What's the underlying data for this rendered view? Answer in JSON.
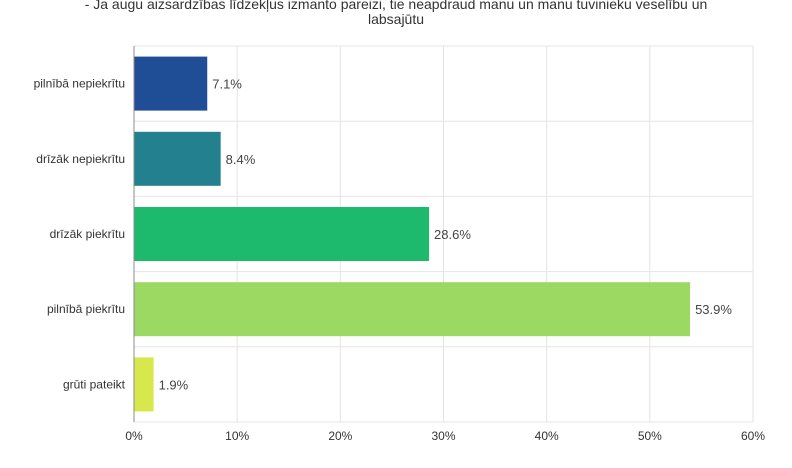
{
  "chart_data": {
    "type": "bar",
    "orientation": "horizontal",
    "title": "- Ja augu aizsardzības līdzekļus izmanto pareizi, tie neapdraud manu un manu tuvinieku veselību un labsajūtu",
    "title_lines": [
      "- Ja augu aizsardzības līdzekļus izmanto pareizi, tie neapdraud manu un manu tuvinieku veselību un",
      "labsajūtu"
    ],
    "categories": [
      "pilnībā nepiekrītu",
      "drīzāk nepiekrītu",
      "drīzāk piekrītu",
      "pilnībā piekrītu",
      "grūti pateikt"
    ],
    "values": [
      7.1,
      8.4,
      28.6,
      53.9,
      1.9
    ],
    "value_labels": [
      "7.1%",
      "8.4%",
      "28.6%",
      "53.9%",
      "1.9%"
    ],
    "colors": [
      "#1f4e96",
      "#23808e",
      "#1dba6e",
      "#9bd962",
      "#d7e84c"
    ],
    "xlim": [
      0,
      60
    ],
    "xticks": [
      0,
      10,
      20,
      30,
      40,
      50,
      60
    ],
    "xtick_labels": [
      "0%",
      "10%",
      "20%",
      "30%",
      "40%",
      "50%",
      "60%"
    ],
    "xlabel": "",
    "ylabel": "",
    "grid": true,
    "legend": "none"
  }
}
